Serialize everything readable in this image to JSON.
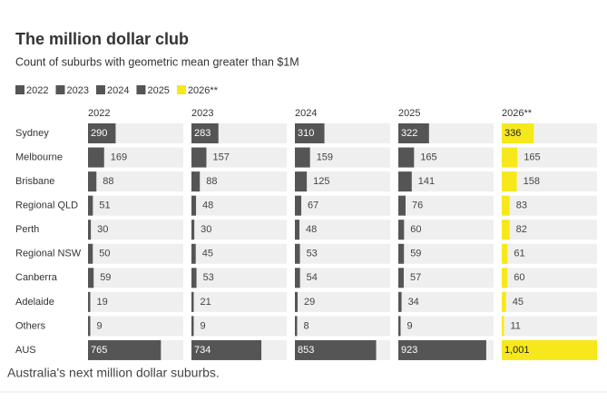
{
  "chart_data": {
    "type": "bar",
    "orientation": "horizontal",
    "layout": "small-multiples",
    "title": "The million dollar club",
    "subtitle": "Count of suburbs with geometric mean greater than $1M",
    "caption": "Australia's next million dollar suburbs.",
    "categories": [
      "Sydney",
      "Melbourne",
      "Brisbane",
      "Regional QLD",
      "Perth",
      "Regional NSW",
      "Canberra",
      "Adelaide",
      "Others",
      "AUS"
    ],
    "xlim": [
      0,
      1000
    ],
    "series": [
      {
        "name": "2022",
        "color": "#555555",
        "values": [
          290,
          169,
          88,
          51,
          30,
          50,
          59,
          19,
          9,
          765
        ]
      },
      {
        "name": "2023",
        "color": "#555555",
        "values": [
          283,
          157,
          88,
          48,
          30,
          45,
          53,
          21,
          9,
          734
        ]
      },
      {
        "name": "2024",
        "color": "#555555",
        "values": [
          310,
          159,
          125,
          67,
          48,
          53,
          54,
          29,
          8,
          853
        ]
      },
      {
        "name": "2025",
        "color": "#555555",
        "values": [
          322,
          165,
          141,
          76,
          60,
          59,
          57,
          34,
          9,
          923
        ]
      },
      {
        "name": "2026**",
        "color": "#f7e81c",
        "values": [
          336,
          165,
          158,
          83,
          82,
          61,
          60,
          45,
          11,
          1001
        ],
        "value_labels": [
          "336",
          "165",
          "158",
          "83",
          "82",
          "61",
          "60",
          "45",
          "11",
          "1,001"
        ]
      }
    ]
  }
}
